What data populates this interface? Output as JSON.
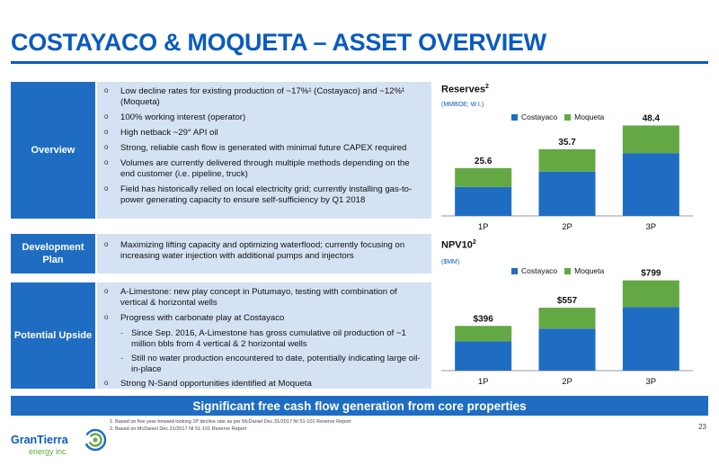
{
  "title": "COSTAYACO & MOQUETA – ASSET OVERVIEW",
  "colors": {
    "brand": "#1f6dc3",
    "panel": "#d4e2f4",
    "costayaco": "#1f6dc3",
    "moqueta": "#64a844"
  },
  "rows": {
    "overview": {
      "label": "Overview",
      "bullets": [
        "Low decline rates for existing production of ~17%¹ (Costayaco) and ~12%¹ (Moqueta)",
        "100% working interest (operator)",
        "High netback ~29° API oil",
        "Strong, reliable cash flow is generated with minimal future CAPEX required",
        "Volumes are currently delivered through multiple methods depending on the end customer (i.e. pipeline, truck)",
        "Field has historically relied on local electricity grid; currently installing gas-to-power generating capacity to ensure self-sufficiency by Q1 2018"
      ]
    },
    "development": {
      "label": "Development Plan",
      "bullets": [
        "Maximizing lifting capacity and optimizing waterflood; currently focusing on increasing water injection with additional pumps and injectors"
      ]
    },
    "upside": {
      "label": "Potential Upside",
      "bullet1": "A-Limestone: new play concept in Putumayo, testing with combination of vertical & horizontal wells",
      "bullet2": "Progress with carbonate play at Costayaco",
      "sub1": "Since Sep. 2016, A-Limestone has gross cumulative oil production of ~1 million bbls from 4 vertical & 2 horizontal wells",
      "sub2": "Still no water production encountered to date, potentially indicating large oil-in-place",
      "bullet3": "Strong N-Sand opportunities identified at Moqueta"
    }
  },
  "banner": "Significant free cash flow generation from core properties",
  "footnotes": [
    "1. Based on five year forward-looking 1P decline rate as per McDaniel Dec.31/2017 NI 51-101 Reserve Report",
    "2. Based on McDaniel Dec.31/2017 NI 51-101 Reserve Report"
  ],
  "page_number": "23",
  "logo": {
    "name": "GranTierra",
    "sub": "energy inc."
  },
  "chart_data": [
    {
      "type": "bar",
      "title": "Reserves",
      "title_sup": "2",
      "unit": "(MMBOE; W.I.)",
      "categories": [
        "1P",
        "2P",
        "3P"
      ],
      "series": [
        {
          "name": "Costayaco",
          "values": [
            15.5,
            23.7,
            33.6
          ]
        },
        {
          "name": "Moqueta",
          "values": [
            10.1,
            12.0,
            14.8
          ]
        }
      ],
      "totals": [
        "25.6",
        "35.7",
        "48.4"
      ],
      "ylim": [
        0,
        52
      ]
    },
    {
      "type": "bar",
      "title": "NPV10",
      "title_sup": "2",
      "unit": "($MM)",
      "categories": [
        "1P",
        "2P",
        "3P"
      ],
      "series": [
        {
          "name": "Costayaco",
          "values": [
            260,
            372,
            563
          ]
        },
        {
          "name": "Moqueta",
          "values": [
            136,
            185,
            236
          ]
        }
      ],
      "totals": [
        "$396",
        "$557",
        "$799"
      ],
      "ylim": [
        0,
        860
      ]
    }
  ]
}
